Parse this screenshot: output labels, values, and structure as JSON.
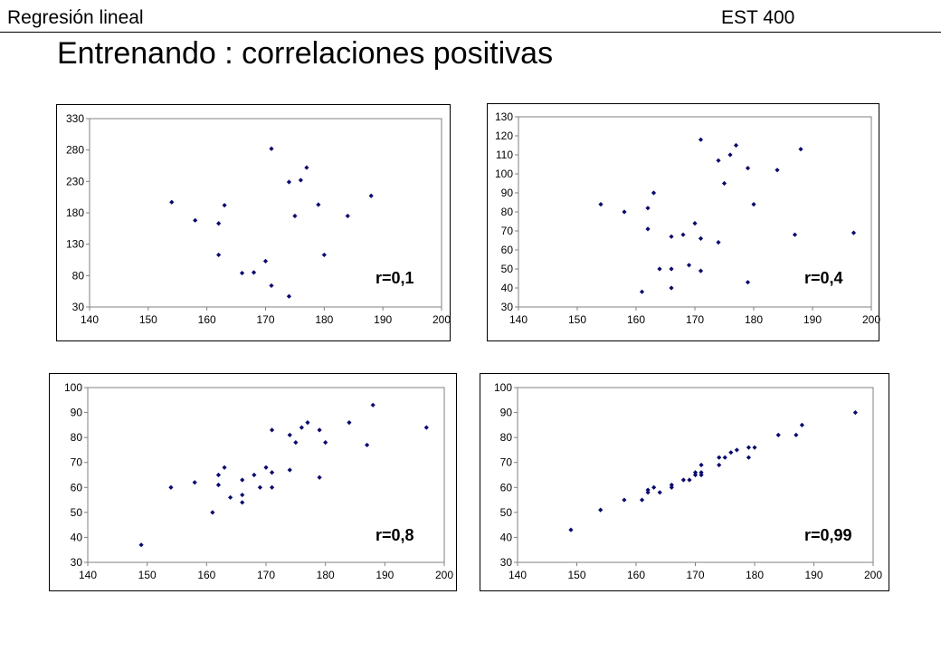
{
  "header": {
    "course": "Regresión lineal",
    "code": "EST 400"
  },
  "page_title": "Entrenando : correlaciones positivas",
  "colors": {
    "marker": "#0a0a6e",
    "axis": "#808080",
    "frame": "#000000"
  },
  "chart_data": [
    {
      "type": "scatter",
      "annotation": "r=0,1",
      "xlim": [
        140,
        200
      ],
      "ylim": [
        30,
        330
      ],
      "x_ticks": [
        140,
        150,
        160,
        170,
        180,
        190,
        200
      ],
      "y_ticks": [
        30,
        80,
        130,
        180,
        230,
        280,
        330
      ],
      "grid": false,
      "points": [
        [
          154,
          197
        ],
        [
          158,
          168
        ],
        [
          162,
          163
        ],
        [
          163,
          192
        ],
        [
          162,
          113
        ],
        [
          166,
          84
        ],
        [
          168,
          85
        ],
        [
          170,
          103
        ],
        [
          171,
          282
        ],
        [
          171,
          64
        ],
        [
          174,
          229
        ],
        [
          176,
          232
        ],
        [
          177,
          252
        ],
        [
          175,
          175
        ],
        [
          174,
          47
        ],
        [
          179,
          193
        ],
        [
          180,
          113
        ],
        [
          184,
          175
        ],
        [
          188,
          207
        ]
      ]
    },
    {
      "type": "scatter",
      "annotation": "r=0,4",
      "xlim": [
        140,
        200
      ],
      "ylim": [
        30,
        130
      ],
      "x_ticks": [
        140,
        150,
        160,
        170,
        180,
        190,
        200
      ],
      "y_ticks": [
        30,
        40,
        50,
        60,
        70,
        80,
        90,
        100,
        110,
        120,
        130
      ],
      "grid": false,
      "points": [
        [
          154,
          84
        ],
        [
          158,
          80
        ],
        [
          161,
          38
        ],
        [
          162,
          82
        ],
        [
          162,
          71
        ],
        [
          163,
          90
        ],
        [
          164,
          50
        ],
        [
          166,
          50
        ],
        [
          166,
          67
        ],
        [
          166,
          40
        ],
        [
          168,
          68
        ],
        [
          169,
          52
        ],
        [
          170,
          74
        ],
        [
          171,
          66
        ],
        [
          171,
          49
        ],
        [
          171,
          118
        ],
        [
          174,
          107
        ],
        [
          174,
          64
        ],
        [
          175,
          95
        ],
        [
          176,
          110
        ],
        [
          177,
          115
        ],
        [
          179,
          103
        ],
        [
          179,
          43
        ],
        [
          180,
          84
        ],
        [
          184,
          102
        ],
        [
          187,
          68
        ],
        [
          188,
          113
        ],
        [
          197,
          69
        ]
      ]
    },
    {
      "type": "scatter",
      "annotation": "r=0,8",
      "xlim": [
        140,
        200
      ],
      "ylim": [
        30,
        100
      ],
      "x_ticks": [
        140,
        150,
        160,
        170,
        180,
        190,
        200
      ],
      "y_ticks": [
        30,
        40,
        50,
        60,
        70,
        80,
        90,
        100
      ],
      "grid": false,
      "points": [
        [
          149,
          37
        ],
        [
          154,
          60
        ],
        [
          158,
          62
        ],
        [
          161,
          50
        ],
        [
          162,
          65
        ],
        [
          162,
          61
        ],
        [
          163,
          68
        ],
        [
          164,
          56
        ],
        [
          166,
          57
        ],
        [
          166,
          54
        ],
        [
          166,
          63
        ],
        [
          168,
          65
        ],
        [
          169,
          60
        ],
        [
          170,
          68
        ],
        [
          171,
          66
        ],
        [
          171,
          60
        ],
        [
          171,
          83
        ],
        [
          174,
          81
        ],
        [
          174,
          67
        ],
        [
          175,
          78
        ],
        [
          176,
          84
        ],
        [
          177,
          86
        ],
        [
          179,
          83
        ],
        [
          179,
          64
        ],
        [
          180,
          78
        ],
        [
          184,
          86
        ],
        [
          187,
          77
        ],
        [
          188,
          93
        ],
        [
          197,
          84
        ]
      ]
    },
    {
      "type": "scatter",
      "annotation": "r=0,99",
      "xlim": [
        140,
        200
      ],
      "ylim": [
        30,
        100
      ],
      "x_ticks": [
        140,
        150,
        160,
        170,
        180,
        190,
        200
      ],
      "y_ticks": [
        30,
        40,
        50,
        60,
        70,
        80,
        90,
        100
      ],
      "grid": false,
      "points": [
        [
          149,
          43
        ],
        [
          154,
          51
        ],
        [
          158,
          55
        ],
        [
          161,
          55
        ],
        [
          162,
          58
        ],
        [
          162,
          59
        ],
        [
          163,
          60
        ],
        [
          164,
          58
        ],
        [
          166,
          60
        ],
        [
          166,
          61
        ],
        [
          168,
          63
        ],
        [
          169,
          63
        ],
        [
          170,
          66
        ],
        [
          170,
          65
        ],
        [
          171,
          69
        ],
        [
          171,
          65
        ],
        [
          171,
          66
        ],
        [
          174,
          69
        ],
        [
          174,
          72
        ],
        [
          175,
          72
        ],
        [
          176,
          74
        ],
        [
          177,
          75
        ],
        [
          179,
          72
        ],
        [
          179,
          76
        ],
        [
          180,
          76
        ],
        [
          184,
          81
        ],
        [
          187,
          81
        ],
        [
          188,
          85
        ],
        [
          197,
          90
        ]
      ]
    }
  ]
}
